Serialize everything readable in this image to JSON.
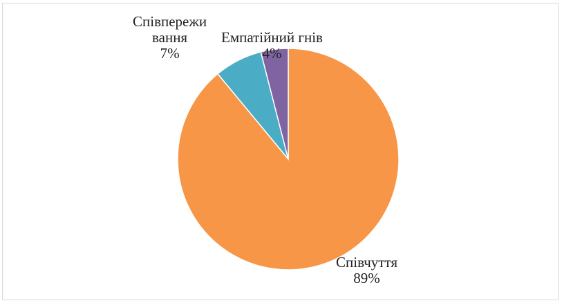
{
  "chart_data": {
    "type": "pie",
    "start_angle_deg": 0,
    "direction": "clockwise",
    "slices": [
      {
        "label_lines": [
          "Співчуття"
        ],
        "value": 89,
        "value_label": "89%",
        "color": "#F79646"
      },
      {
        "label_lines": [
          "Співпережи",
          "вання"
        ],
        "value": 7,
        "value_label": "7%",
        "color": "#4BACC6"
      },
      {
        "label_lines": [
          "Емпатійний гнів"
        ],
        "value": 4,
        "value_label": "4%",
        "color": "#8064A2"
      }
    ]
  }
}
